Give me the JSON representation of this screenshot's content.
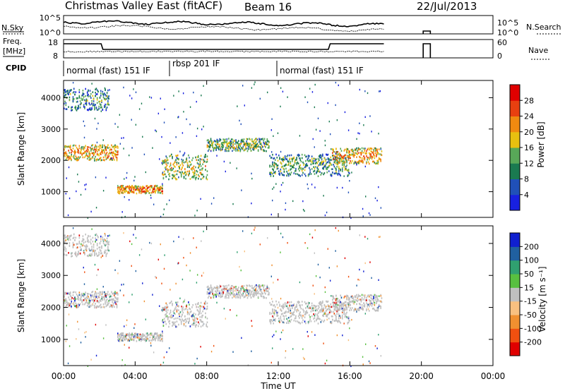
{
  "header": {
    "radar": "Christmas Valley East (fitACF)",
    "beam": "Beam 16",
    "date": "22/Jul/2013"
  },
  "noise_panel": {
    "left_label": "N.Sky",
    "left_ticks": [
      "10^5",
      "10^0"
    ],
    "right_ticks": [
      "10^5",
      "10^0"
    ],
    "right_label": "N.Search"
  },
  "freq_panel": {
    "left_label_1": "Freq.",
    "left_label_2": "[MHz]",
    "left_ticks": [
      "18",
      "8"
    ],
    "right_ticks": [
      "60",
      "0"
    ],
    "right_label": "Nave"
  },
  "cpid": {
    "label": "CPID",
    "segments": [
      {
        "label": "normal (fast) 151 IF",
        "start_hour": 0,
        "end_hour": 6
      },
      {
        "label": "rbsp 201 IF",
        "start_hour": 6,
        "end_hour": 12
      },
      {
        "label": "normal (fast) 151 IF",
        "start_hour": 12,
        "end_hour": 24
      }
    ]
  },
  "chart_data": [
    {
      "type": "heatmap",
      "parameter": "power",
      "ylabel": "Slant Range [km]",
      "xlabel": "",
      "x_range_hours": [
        0,
        24
      ],
      "ylim": [
        180,
        4550
      ],
      "y_ticks": [
        "1000",
        "2000",
        "3000",
        "4000"
      ],
      "colorbar": {
        "label": "Power [dB]",
        "ticks": [
          "4",
          "8",
          "12",
          "16",
          "20",
          "24",
          "28"
        ],
        "range": [
          0,
          32
        ],
        "colors": [
          "#1820e0",
          "#2050b8",
          "#1a7a50",
          "#58a858",
          "#e8c010",
          "#f08a10",
          "#e84010",
          "#e00000"
        ]
      },
      "echo_bands": [
        {
          "hours": [
            0,
            3.0
          ],
          "range_km": [
            2000,
            2500
          ],
          "level": 22
        },
        {
          "hours": [
            3.0,
            5.5
          ],
          "range_km": [
            950,
            1200
          ],
          "level": 24
        },
        {
          "hours": [
            5.5,
            8.0
          ],
          "range_km": [
            1400,
            2200
          ],
          "level": 18
        },
        {
          "hours": [
            8.0,
            11.5
          ],
          "range_km": [
            2300,
            2700
          ],
          "level": 16
        },
        {
          "hours": [
            11.5,
            16.0
          ],
          "range_km": [
            1500,
            2200
          ],
          "level": 14
        },
        {
          "hours": [
            15.0,
            17.8
          ],
          "range_km": [
            1900,
            2400
          ],
          "level": 22
        },
        {
          "hours": [
            0,
            2.5
          ],
          "range_km": [
            3600,
            4300
          ],
          "level": 12
        }
      ]
    },
    {
      "type": "heatmap",
      "parameter": "velocity",
      "ylabel": "Slant Range [km]",
      "xlabel": "Time UT",
      "x_ticks": [
        "00:00",
        "04:00",
        "08:00",
        "12:00",
        "16:00",
        "20:00",
        "00:00"
      ],
      "x_range_hours": [
        0,
        24
      ],
      "ylim": [
        180,
        4550
      ],
      "y_ticks": [
        "1000",
        "2000",
        "3000",
        "4000"
      ],
      "colorbar": {
        "label": "Velocity [m s⁻¹]",
        "ticks": [
          "-200",
          "-100",
          "-50",
          "-15",
          "15",
          "50",
          "100",
          "200"
        ],
        "range": [
          -250,
          250
        ],
        "colors": [
          "#e00000",
          "#f05010",
          "#f09030",
          "#f8c080",
          "#c0c0c0",
          "#58c040",
          "#30a070",
          "#2060a0",
          "#1020d0"
        ]
      }
    }
  ]
}
